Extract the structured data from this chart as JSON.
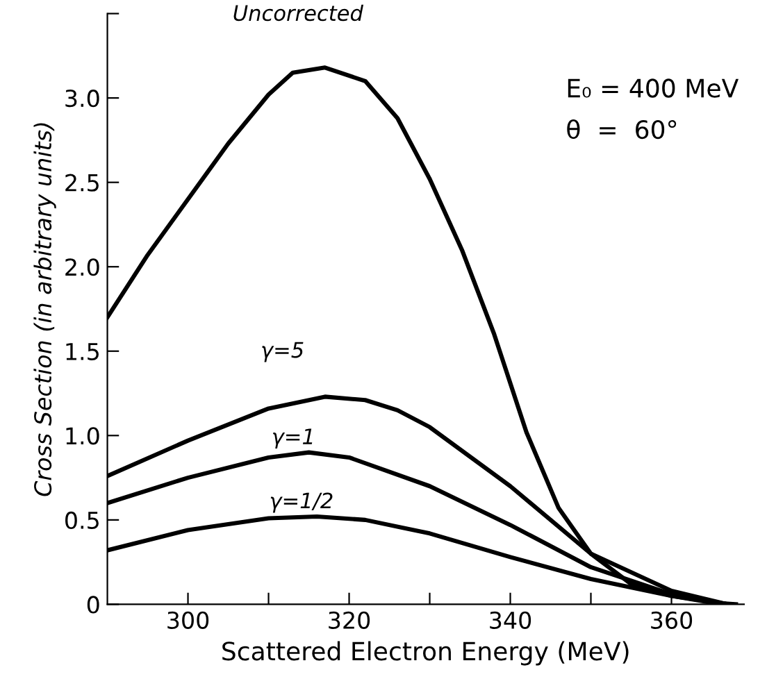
{
  "chart_data": {
    "type": "line",
    "xlabel": "Scattered Electron Energy (MeV)",
    "ylabel": "Cross Section (in arbitrary units)",
    "xlim": [
      290,
      369
    ],
    "ylim": [
      0,
      3.5
    ],
    "xticks": [
      300,
      {
        "value": 310,
        "label": null
      },
      320,
      {
        "value": 330,
        "label": null
      },
      340,
      {
        "value": 350,
        "label": null
      },
      360
    ],
    "yticks": [
      0,
      0.5,
      {
        "value": 1.0,
        "label": "1.0"
      },
      1.5,
      {
        "value": 2.0,
        "label": "2.0"
      },
      2.5,
      {
        "value": 3.0,
        "label": "3.0"
      },
      {
        "value": 3.5,
        "label": null
      }
    ],
    "grid": false,
    "legend": false,
    "marker": "none",
    "line_style": "solid",
    "annotations": [
      "E₀ = 400 MeV",
      "θ  =  60°"
    ],
    "series": [
      {
        "name": "Uncorrected",
        "color": "#000000",
        "x": [
          290,
          295,
          300,
          305,
          310,
          313,
          317,
          322,
          326,
          330,
          334,
          338,
          342,
          346,
          350,
          355,
          360,
          365,
          368
        ],
        "values": [
          1.7,
          2.07,
          2.4,
          2.73,
          3.02,
          3.15,
          3.18,
          3.1,
          2.88,
          2.52,
          2.1,
          1.6,
          1.02,
          0.57,
          0.3,
          0.12,
          0.05,
          0.01,
          0
        ]
      },
      {
        "name": "γ=5",
        "color": "#000000",
        "x": [
          290,
          300,
          310,
          317,
          322,
          326,
          330,
          340,
          350,
          360,
          367
        ],
        "values": [
          0.76,
          0.97,
          1.16,
          1.23,
          1.21,
          1.15,
          1.05,
          0.7,
          0.3,
          0.08,
          0
        ]
      },
      {
        "name": "γ=1",
        "color": "#000000",
        "x": [
          290,
          300,
          310,
          315,
          320,
          330,
          340,
          350,
          360,
          367
        ],
        "values": [
          0.6,
          0.75,
          0.87,
          0.9,
          0.87,
          0.7,
          0.47,
          0.22,
          0.06,
          0
        ]
      },
      {
        "name": "γ=1/2",
        "color": "#000000",
        "x": [
          290,
          300,
          310,
          316,
          322,
          330,
          340,
          350,
          360,
          367
        ],
        "values": [
          0.32,
          0.44,
          0.51,
          0.52,
          0.5,
          0.42,
          0.28,
          0.15,
          0.05,
          0
        ]
      }
    ]
  }
}
